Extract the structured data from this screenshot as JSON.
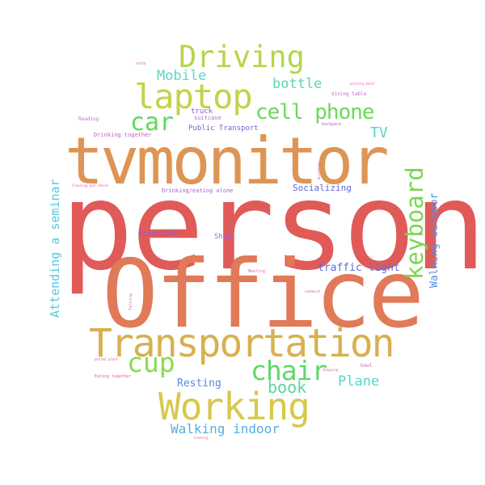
{
  "cloud": {
    "words": [
      {
        "id": "person",
        "text": "person",
        "color": "#e05a58"
      },
      {
        "id": "office",
        "text": "Office",
        "color": "#e07a58"
      },
      {
        "id": "tvmonitor",
        "text": "tvmonitor",
        "color": "#dd9555"
      },
      {
        "id": "transportation",
        "text": "Transportation",
        "color": "#d8b050"
      },
      {
        "id": "working",
        "text": "Working",
        "color": "#d6c94a"
      },
      {
        "id": "driving",
        "text": "Driving",
        "color": "#b6d44c"
      },
      {
        "id": "laptop",
        "text": "laptop",
        "color": "#c4d24a"
      },
      {
        "id": "cell-phone",
        "text": "cell phone",
        "color": "#6cd95a"
      },
      {
        "id": "keyboard",
        "text": "keyboard",
        "color": "#7ad64f"
      },
      {
        "id": "car",
        "text": "car",
        "color": "#5ed957"
      },
      {
        "id": "cup",
        "text": "cup",
        "color": "#8ad954"
      },
      {
        "id": "chair",
        "text": "chair",
        "color": "#5fd86a"
      },
      {
        "id": "book",
        "text": "book",
        "color": "#5ad6a0"
      },
      {
        "id": "mobile",
        "text": "Mobile",
        "color": "#5ad6c8"
      },
      {
        "id": "bottle",
        "text": "bottle",
        "color": "#57d6b6"
      },
      {
        "id": "tv",
        "text": "TV",
        "color": "#57d6c4"
      },
      {
        "id": "plane",
        "text": "Plane",
        "color": "#57d6d0"
      },
      {
        "id": "attending-a-seminar",
        "text": "Attending a seminar",
        "color": "#56c8de"
      },
      {
        "id": "walking-outdoor",
        "text": "Walking outdoor",
        "color": "#5a8ee0"
      },
      {
        "id": "traffic-light",
        "text": "traffic light",
        "color": "#5a72d8"
      },
      {
        "id": "socializing",
        "text": "Socializing",
        "color": "#5e6ad6"
      },
      {
        "id": "walking-indoor",
        "text": "Walking indoor",
        "color": "#56b0e0"
      },
      {
        "id": "resting",
        "text": "Resting",
        "color": "#5a88dc"
      },
      {
        "id": "public-transport",
        "text": "Public Transport",
        "color": "#7d5cd8"
      },
      {
        "id": "drinking-together",
        "text": "Drinking together",
        "color": "#c060c4"
      },
      {
        "id": "drinking-eating-alone",
        "text": "Drinking/eating alone",
        "color": "#a864d0"
      },
      {
        "id": "motorbike",
        "text": "motorbike",
        "color": "#8a5cd6"
      },
      {
        "id": "shop",
        "text": "Shop",
        "color": "#a85cd4"
      },
      {
        "id": "truck",
        "text": "truck",
        "color": "#8a5ed2"
      },
      {
        "id": "suitcase",
        "text": "suitcase",
        "color": "#b068c8"
      },
      {
        "id": "reading",
        "text": "Reading",
        "color": "#c870c8"
      },
      {
        "id": "sofa",
        "text": "sofa",
        "color": "#d870b0"
      },
      {
        "id": "parking-meter",
        "text": "parking meter",
        "color": "#e06aa8"
      },
      {
        "id": "dining-table",
        "text": "dining table",
        "color": "#c46ad0"
      },
      {
        "id": "backpack",
        "text": "backpack",
        "color": "#c060c8"
      },
      {
        "id": "buildings",
        "text": "Buildings",
        "color": "#d060b8"
      },
      {
        "id": "cleaning-and-chores",
        "text": "Cleaning and chores",
        "color": "#d866a8"
      },
      {
        "id": "meeting",
        "text": "Meeting",
        "color": "#e070b0"
      },
      {
        "id": "talking",
        "text": "Talking",
        "color": "#d070c0"
      },
      {
        "id": "sandwich",
        "text": "sandwich",
        "color": "#e0588a"
      },
      {
        "id": "potted-plant",
        "text": "potted plant",
        "color": "#e0609a"
      },
      {
        "id": "bowl",
        "text": "bowl",
        "color": "#d46ab8"
      },
      {
        "id": "shopping",
        "text": "Shopping",
        "color": "#d86ab0"
      },
      {
        "id": "eating-together",
        "text": "Eating together",
        "color": "#e060a0"
      },
      {
        "id": "cooking",
        "text": "Cooking",
        "color": "#e068b0"
      }
    ]
  }
}
